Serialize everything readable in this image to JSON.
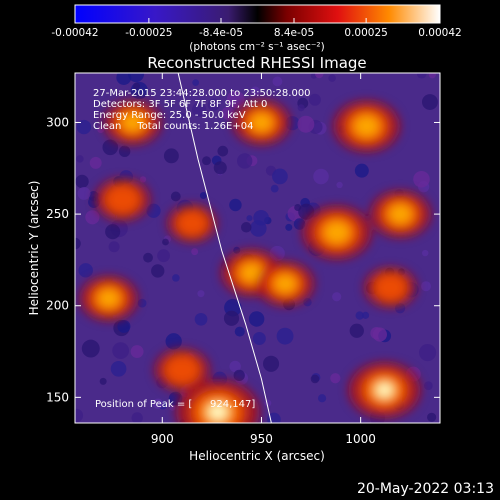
{
  "chart_data": {
    "type": "heatmap",
    "title": "Reconstructed RHESSI Image",
    "xlabel": "Heliocentric X (arcsec)",
    "ylabel": "Heliocentric Y (arcsec)",
    "xlim": [
      856,
      1040
    ],
    "ylim": [
      136,
      327
    ],
    "x_ticks": [
      900,
      950,
      1000
    ],
    "y_ticks": [
      150,
      200,
      250,
      300
    ],
    "colorbar": {
      "min": -0.00042,
      "max": 0.00042,
      "tick_values": [
        -0.00042,
        -0.00025,
        -8.4e-05,
        8.4e-05,
        0.00025,
        0.00042
      ],
      "tick_labels": [
        "-0.00042",
        "-0.00025",
        "-8.4e-05",
        "8.4e-05",
        "0.00025",
        "0.00042"
      ],
      "unit_label": "(photons cm⁻² s⁻¹ asec⁻²)"
    },
    "info_lines": [
      "27-Mar-2015 23:44:28.000 to 23:50:28.000",
      "Detectors: 3F 5F 6F 7F 8F 9F, Att 0",
      "Energy Range: 25.0 - 50.0 keV",
      "Clean     Total counts: 1.26E+04"
    ],
    "peak_label": "Position of Peak = [",
    "peak_value": "924,147]",
    "bright_regions": [
      {
        "x": 928,
        "y": 142,
        "level": 1.0
      },
      {
        "x": 1012,
        "y": 154,
        "level": 0.8
      },
      {
        "x": 1003,
        "y": 298,
        "level": 0.7
      },
      {
        "x": 988,
        "y": 240,
        "level": 0.75
      },
      {
        "x": 1020,
        "y": 250,
        "level": 0.6
      },
      {
        "x": 945,
        "y": 218,
        "level": 0.6
      },
      {
        "x": 962,
        "y": 212,
        "level": 0.55
      },
      {
        "x": 873,
        "y": 204,
        "level": 0.55
      },
      {
        "x": 880,
        "y": 258,
        "level": 0.5
      },
      {
        "x": 885,
        "y": 300,
        "level": 0.55
      },
      {
        "x": 950,
        "y": 300,
        "level": 0.55
      },
      {
        "x": 910,
        "y": 165,
        "level": 0.5
      },
      {
        "x": 1015,
        "y": 210,
        "level": 0.45
      },
      {
        "x": 915,
        "y": 245,
        "level": 0.4
      }
    ],
    "limb_curve": [
      [
        908,
        327
      ],
      [
        918,
        280
      ],
      [
        930,
        230
      ],
      [
        942,
        190
      ],
      [
        950,
        160
      ],
      [
        955,
        136
      ]
    ]
  },
  "footer": {
    "date_stamp": "20-May-2022 03:13"
  }
}
